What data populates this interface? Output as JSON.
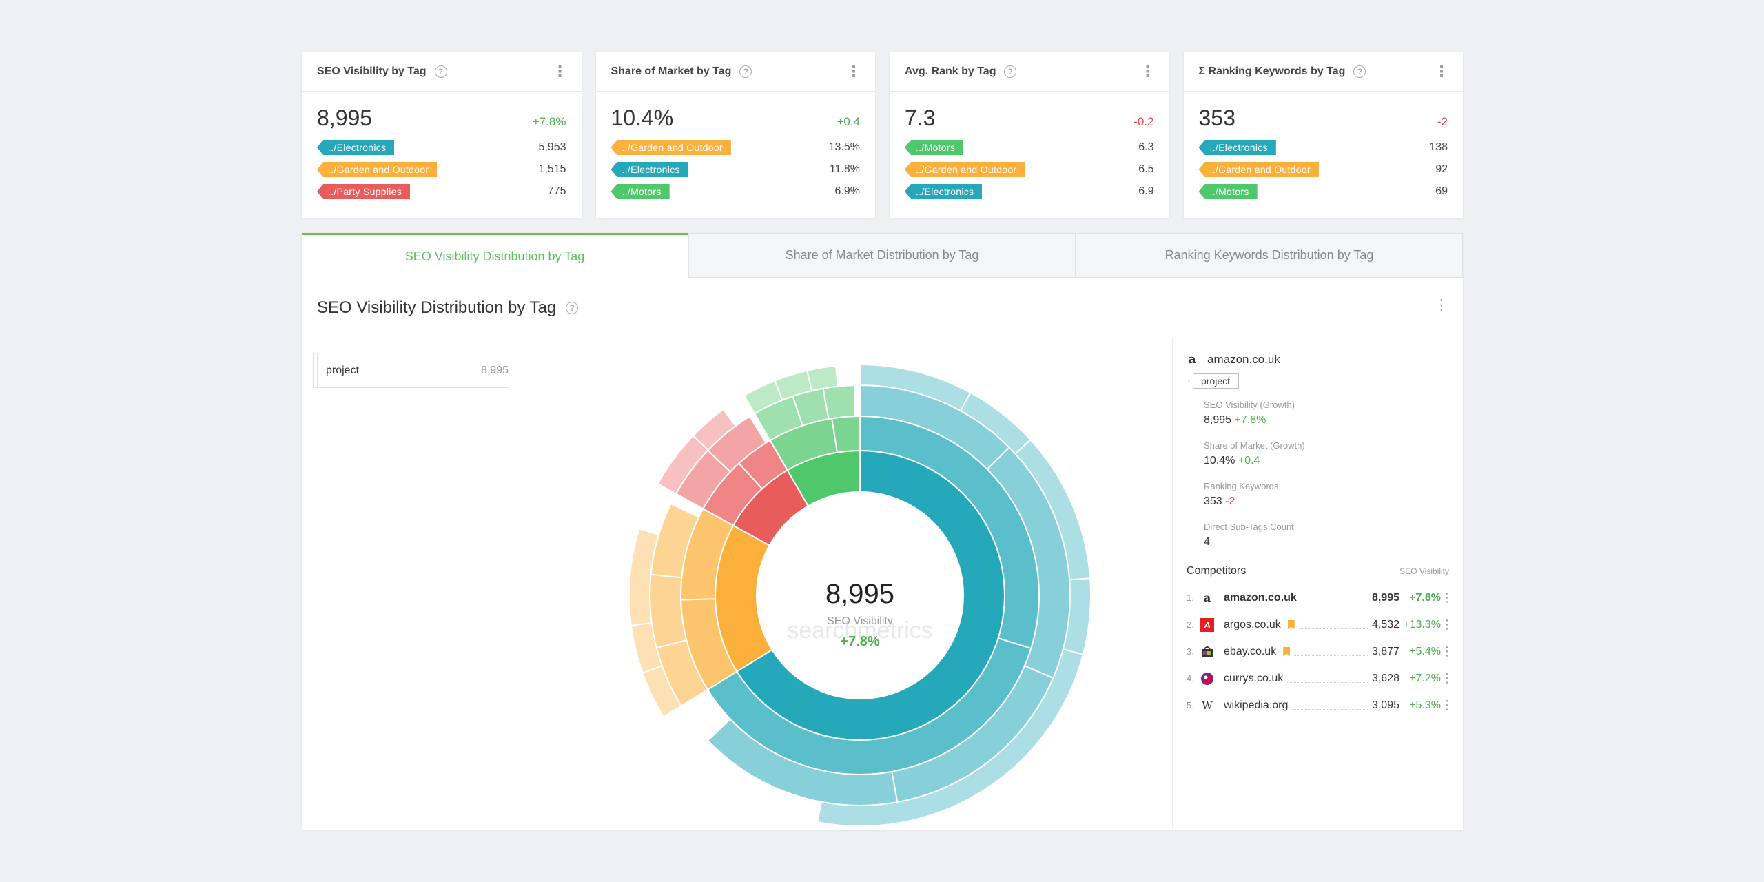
{
  "kpis": [
    {
      "title": "SEO Visibility by Tag",
      "value": "8,995",
      "delta": "+7.8%",
      "delta_sign": "pos",
      "lines": [
        {
          "tag": "../Electronics",
          "color": "blue",
          "value": "5,953"
        },
        {
          "tag": "../Garden and Outdoor",
          "color": "orange",
          "value": "1,515"
        },
        {
          "tag": "../Party Supplies",
          "color": "red",
          "value": "775"
        }
      ]
    },
    {
      "title": "Share of Market by Tag",
      "value": "10.4%",
      "delta": "+0.4",
      "delta_sign": "pos",
      "lines": [
        {
          "tag": "../Garden and Outdoor",
          "color": "orange",
          "value": "13.5%"
        },
        {
          "tag": "../Electronics",
          "color": "blue",
          "value": "11.8%"
        },
        {
          "tag": "../Motors",
          "color": "green",
          "value": "6.9%"
        }
      ]
    },
    {
      "title": "Avg. Rank by Tag",
      "value": "7.3",
      "delta": "-0.2",
      "delta_sign": "neg",
      "lines": [
        {
          "tag": "../Motors",
          "color": "green",
          "value": "6.3"
        },
        {
          "tag": "../Garden and Outdoor",
          "color": "orange",
          "value": "6.5"
        },
        {
          "tag": "../Electronics",
          "color": "blue",
          "value": "6.9"
        }
      ]
    },
    {
      "title": "Σ Ranking Keywords by Tag",
      "value": "353",
      "delta": "-2",
      "delta_sign": "neg",
      "lines": [
        {
          "tag": "../Electronics",
          "color": "blue",
          "value": "138"
        },
        {
          "tag": "../Garden and Outdoor",
          "color": "orange",
          "value": "92"
        },
        {
          "tag": "../Motors",
          "color": "green",
          "value": "69"
        }
      ]
    }
  ],
  "tabs": [
    {
      "label": "SEO Visibility Distribution by Tag",
      "active": true
    },
    {
      "label": "Share of Market Distribution by Tag",
      "active": false
    },
    {
      "label": "Ranking Keywords Distribution by Tag",
      "active": false
    }
  ],
  "panel": {
    "title": "SEO Visibility Distribution by Tag",
    "breadcrumb_label": "project",
    "breadcrumb_value": "8,995"
  },
  "center": {
    "value": "8,995",
    "label": "SEO Visibility",
    "delta": "+7.8%",
    "watermark": "searchmetrics"
  },
  "colors": {
    "blue": "#24a8ba",
    "orange": "#fbb03b",
    "red": "#e95c5c",
    "green": "#4fc76b",
    "positive": "#4cae4c",
    "negative": "#e84b4b",
    "active_tab": "#5bc25b"
  },
  "chart_data": {
    "type": "sunburst",
    "root": {
      "name": "project",
      "value": 8995
    },
    "children": [
      {
        "name": "../Electronics",
        "value": 5953,
        "color": "blue"
      },
      {
        "name": "../Garden and Outdoor",
        "value": 1515,
        "color": "orange"
      },
      {
        "name": "../Party Supplies",
        "value": 775,
        "color": "red"
      },
      {
        "name": "../Motors",
        "value": 752,
        "color": "green"
      }
    ]
  },
  "side": {
    "site": "amazon.co.uk",
    "site_icon": "amazon-icon",
    "tag": "project",
    "metrics": [
      {
        "label": "SEO Visibility (Growth)",
        "value": "8,995",
        "delta": "+7.8%",
        "sign": "pos"
      },
      {
        "label": "Share of Market (Growth)",
        "value": "10.4%",
        "delta": "+0.4",
        "sign": "pos"
      },
      {
        "label": "Ranking Keywords",
        "value": "353",
        "delta": "-2",
        "sign": "neg"
      },
      {
        "label": "Direct Sub-Tags Count",
        "value": "4",
        "delta": "",
        "sign": ""
      }
    ],
    "competitors_title": "Competitors",
    "competitors_sub": "SEO Visibility",
    "competitors": [
      {
        "rank": "1.",
        "name": "amazon.co.uk",
        "value": "8,995",
        "delta": "+7.8%",
        "icon": "amazon-icon",
        "flag": false,
        "bold": true
      },
      {
        "rank": "2.",
        "name": "argos.co.uk",
        "value": "4,532",
        "delta": "+13.3%",
        "icon": "argos-icon",
        "flag": true,
        "bold": false
      },
      {
        "rank": "3.",
        "name": "ebay.co.uk",
        "value": "3,877",
        "delta": "+5.4%",
        "icon": "ebay-icon",
        "flag": true,
        "bold": false
      },
      {
        "rank": "4.",
        "name": "currys.co.uk",
        "value": "3,628",
        "delta": "+7.2%",
        "icon": "currys-icon",
        "flag": false,
        "bold": false
      },
      {
        "rank": "5.",
        "name": "wikipedia.org",
        "value": "3,095",
        "delta": "+5.3%",
        "icon": "wikipedia-icon",
        "flag": false,
        "bold": false
      }
    ]
  }
}
